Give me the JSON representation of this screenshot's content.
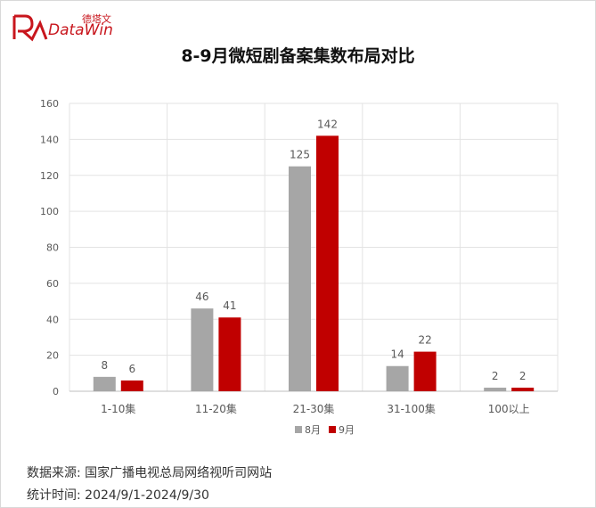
{
  "logo": {
    "cn": "德塔文",
    "en": "DataWin"
  },
  "chart_data": {
    "type": "bar",
    "title": "8-9月微短剧备案集数布局对比",
    "categories": [
      "1-10集",
      "11-20集",
      "21-30集",
      "31-100集",
      "100以上"
    ],
    "series": [
      {
        "name": "8月",
        "color": "#a6a6a6",
        "values": [
          8,
          46,
          125,
          14,
          2
        ]
      },
      {
        "name": "9月",
        "color": "#c00000",
        "values": [
          6,
          41,
          142,
          22,
          2
        ]
      }
    ],
    "ylim": [
      0,
      160
    ],
    "yticks": [
      0,
      20,
      40,
      60,
      80,
      100,
      120,
      140,
      160
    ],
    "grid": true,
    "legend": "bottom-center",
    "xlabel": "",
    "ylabel": ""
  },
  "footer": {
    "source": "数据来源:  国家广播电视总局网络视听司网站",
    "period": "统计时间:  2024/9/1-2024/9/30"
  }
}
